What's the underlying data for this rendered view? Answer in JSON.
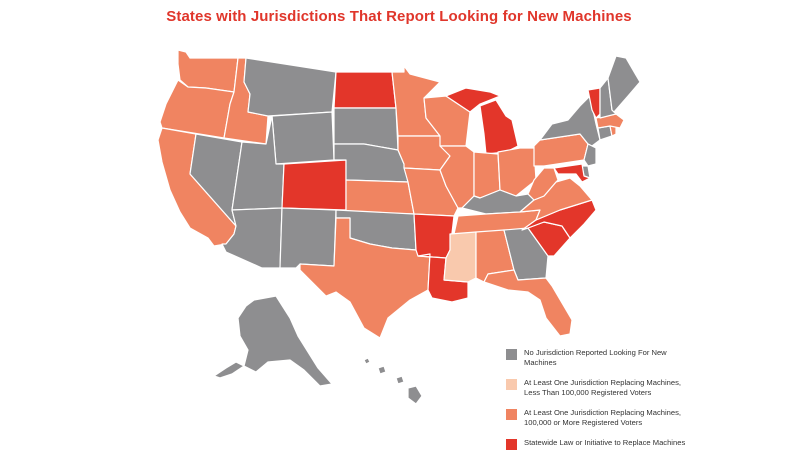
{
  "title": "States with Jurisdictions That Report Looking for New Machines",
  "colors": {
    "none": "#8e8e90",
    "light": "#f9c9ad",
    "orange": "#f08461",
    "red": "#e3362a",
    "border": "#ffffff"
  },
  "legend": [
    {
      "key": "none",
      "lines": [
        "No Jurisdiction Reported Looking For New",
        "Machines"
      ]
    },
    {
      "key": "light",
      "lines": [
        "At Least One Jurisdiction Replacing Machines,",
        "Less Than 100,000 Registered Voters"
      ]
    },
    {
      "key": "orange",
      "lines": [
        "At Least One Jurisdiction Replacing Machines,",
        "100,000 or More Registered Voters"
      ]
    },
    {
      "key": "red",
      "lines": [
        "Statewide Law or Initiative to Replace Machines"
      ]
    }
  ],
  "states": {
    "WA": "orange",
    "OR": "orange",
    "CA": "orange",
    "ID": "orange",
    "NV": "none",
    "MT": "none",
    "WY": "none",
    "UT": "none",
    "AZ": "none",
    "CO": "red",
    "NM": "none",
    "ND": "red",
    "SD": "none",
    "NE": "none",
    "KS": "orange",
    "OK": "none",
    "TX": "orange",
    "MN": "orange",
    "IA": "orange",
    "MO": "orange",
    "AR": "red",
    "LA": "red",
    "WI": "orange",
    "IL": "orange",
    "MI": "red",
    "IN": "orange",
    "OH": "orange",
    "KY": "none",
    "TN": "orange",
    "MS": "light",
    "AL": "orange",
    "GA": "none",
    "FL": "orange",
    "SC": "red",
    "NC": "red",
    "VA": "orange",
    "WV": "orange",
    "PA": "orange",
    "NY": "none",
    "VT": "red",
    "NH": "none",
    "ME": "none",
    "MA": "orange",
    "RI": "orange",
    "CT": "none",
    "NJ": "none",
    "DE": "none",
    "MD": "red",
    "AK": "none",
    "HI": "none"
  }
}
